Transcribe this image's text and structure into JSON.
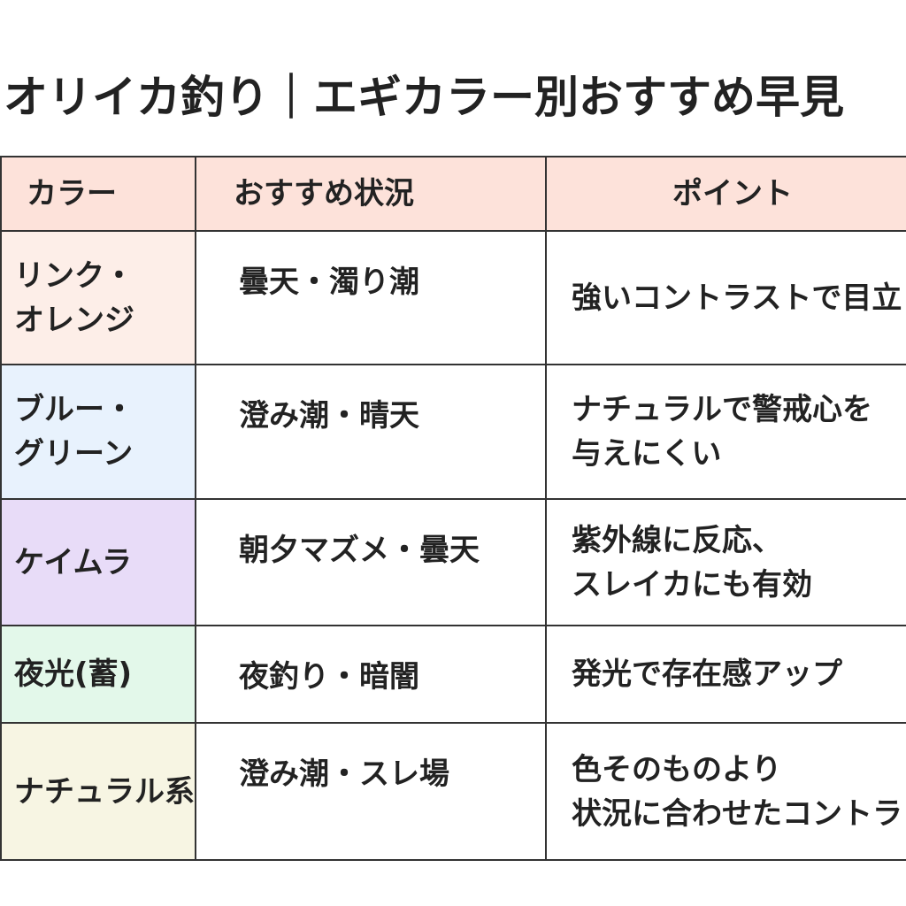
{
  "header": {
    "title": "オリイカ釣り｜エギカラー別おすすめ早見"
  },
  "table": {
    "columns": [
      "カラー",
      "おすすめ状況",
      "ポイント"
    ],
    "rows": [
      [
        [
          "リンク・",
          "オレンジ"
        ],
        [
          "曇天・濁り潮"
        ],
        [
          "強いコントラストで目立"
        ]
      ],
      [
        [
          "ブルー・",
          "グリーン"
        ],
        [
          "澄み潮・晴天"
        ],
        [
          "ナチュラルで警戒心を",
          "与えにくい"
        ]
      ],
      [
        [
          "ケイムラ"
        ],
        [
          "朝夕マズメ・曇天"
        ],
        [
          "紫外線に反応、",
          "スレイカにも有効"
        ]
      ],
      [
        [
          "夜光(蓄)"
        ],
        [
          "夜釣り・暗闇"
        ],
        [
          "発光で存在感アップ"
        ]
      ],
      [
        [
          "ナチュラル系"
        ],
        [
          "澄み潮・スレ場"
        ],
        [
          "色そのものより",
          "状況に合わせたコントラ"
        ]
      ]
    ]
  }
}
